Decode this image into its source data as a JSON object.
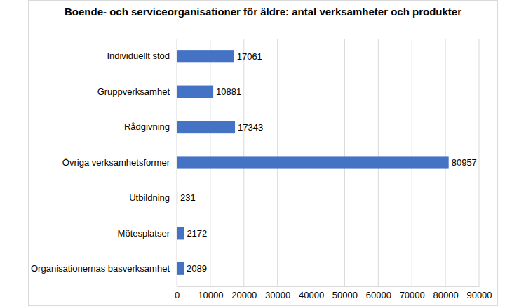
{
  "chart_data": {
    "type": "bar",
    "orientation": "horizontal",
    "title": "Boende- och serviceorganisationer för äldre: antal verksamheter och produkter",
    "categories": [
      "Individuellt stöd",
      "Gruppverksamhet",
      "Rådgivning",
      "Övriga verksamhetsformer",
      "Utbildning",
      "Mötesplatser",
      "Organisationernas basverksamhet"
    ],
    "values": [
      17061,
      10881,
      17343,
      80957,
      231,
      2172,
      2089
    ],
    "color": "#4472c4",
    "xlim": [
      0,
      90000
    ],
    "xticks": [
      0,
      10000,
      20000,
      30000,
      40000,
      50000,
      60000,
      70000,
      80000,
      90000
    ],
    "grid": true,
    "data_labels": true
  }
}
